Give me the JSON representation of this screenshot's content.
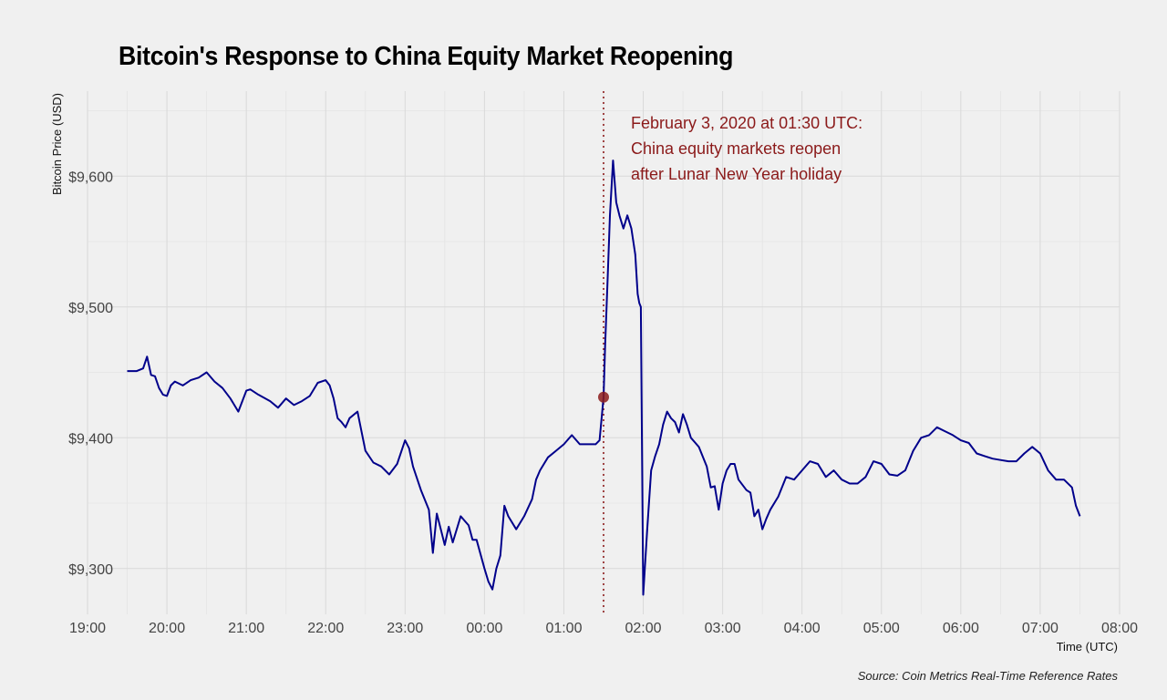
{
  "chart_data": {
    "type": "line",
    "title": "Bitcoin's Response to China Equity Market Reopening",
    "xlabel": "Time (UTC)",
    "ylabel": "Bitcoin Price (USD)",
    "source": "Source: Coin Metrics Real-Time Reference Rates",
    "xlim": [
      19.0,
      32.0
    ],
    "ylim": [
      9265,
      9665
    ],
    "x_ticks": [
      {
        "value": 19,
        "label": "19:00"
      },
      {
        "value": 20,
        "label": "20:00"
      },
      {
        "value": 21,
        "label": "21:00"
      },
      {
        "value": 22,
        "label": "22:00"
      },
      {
        "value": 23,
        "label": "23:00"
      },
      {
        "value": 24,
        "label": "00:00"
      },
      {
        "value": 25,
        "label": "01:00"
      },
      {
        "value": 26,
        "label": "02:00"
      },
      {
        "value": 27,
        "label": "03:00"
      },
      {
        "value": 28,
        "label": "04:00"
      },
      {
        "value": 29,
        "label": "05:00"
      },
      {
        "value": 30,
        "label": "06:00"
      },
      {
        "value": 31,
        "label": "07:00"
      },
      {
        "value": 32,
        "label": "08:00"
      }
    ],
    "y_ticks": [
      {
        "value": 9300,
        "label": "$9,300"
      },
      {
        "value": 9400,
        "label": "$9,400"
      },
      {
        "value": 9500,
        "label": "$9,500"
      },
      {
        "value": 9600,
        "label": "$9,600"
      }
    ],
    "grid": true,
    "series": [
      {
        "color": "#00008b",
        "x": [
          19.5,
          19.62,
          19.7,
          19.75,
          19.8,
          19.85,
          19.9,
          19.95,
          20.0,
          20.05,
          20.1,
          20.2,
          20.3,
          20.4,
          20.5,
          20.6,
          20.7,
          20.8,
          20.9,
          21.0,
          21.05,
          21.15,
          21.3,
          21.4,
          21.5,
          21.6,
          21.7,
          21.8,
          21.9,
          22.0,
          22.05,
          22.1,
          22.15,
          22.2,
          22.25,
          22.3,
          22.4,
          22.5,
          22.6,
          22.7,
          22.8,
          22.9,
          23.0,
          23.05,
          23.1,
          23.2,
          23.3,
          23.35,
          23.4,
          23.45,
          23.5,
          23.55,
          23.6,
          23.7,
          23.8,
          23.85,
          23.9,
          24.0,
          24.05,
          24.1,
          24.15,
          24.2,
          24.25,
          24.3,
          24.4,
          24.5,
          24.6,
          24.65,
          24.7,
          24.8,
          24.9,
          25.0,
          25.1,
          25.2,
          25.3,
          25.4,
          25.45,
          25.5,
          25.52,
          25.55,
          25.58,
          25.62,
          25.66,
          25.7,
          25.75,
          25.8,
          25.85,
          25.9,
          25.93,
          25.95,
          25.97,
          26.0,
          26.05,
          26.1,
          26.15,
          26.2,
          26.25,
          26.3,
          26.35,
          26.4,
          26.45,
          26.5,
          26.55,
          26.6,
          26.7,
          26.8,
          26.85,
          26.9,
          26.95,
          27.0,
          27.05,
          27.1,
          27.15,
          27.2,
          27.3,
          27.35,
          27.4,
          27.45,
          27.5,
          27.55,
          27.6,
          27.7,
          27.8,
          27.9,
          28.0,
          28.1,
          28.2,
          28.3,
          28.4,
          28.5,
          28.6,
          28.7,
          28.8,
          28.9,
          29.0,
          29.1,
          29.2,
          29.3,
          29.4,
          29.5,
          29.6,
          29.7,
          29.8,
          29.9,
          30.0,
          30.1,
          30.2,
          30.3,
          30.4,
          30.5,
          30.6,
          30.7,
          30.8,
          30.9,
          31.0,
          31.1,
          31.2,
          31.3,
          31.4,
          31.45,
          31.5
        ],
        "y": [
          9451,
          9451,
          9453,
          9462,
          9448,
          9447,
          9438,
          9433,
          9432,
          9440,
          9443,
          9440,
          9444,
          9446,
          9450,
          9443,
          9438,
          9430,
          9420,
          9436,
          9437,
          9433,
          9428,
          9423,
          9430,
          9425,
          9428,
          9432,
          9442,
          9444,
          9440,
          9430,
          9415,
          9412,
          9408,
          9415,
          9420,
          9390,
          9381,
          9378,
          9372,
          9380,
          9398,
          9392,
          9378,
          9360,
          9345,
          9312,
          9342,
          9330,
          9318,
          9332,
          9320,
          9340,
          9333,
          9322,
          9322,
          9300,
          9290,
          9284,
          9300,
          9310,
          9348,
          9340,
          9330,
          9340,
          9353,
          9368,
          9375,
          9385,
          9390,
          9395,
          9402,
          9395,
          9395,
          9395,
          9398,
          9431,
          9470,
          9520,
          9570,
          9612,
          9580,
          9570,
          9560,
          9570,
          9560,
          9540,
          9510,
          9503,
          9500,
          9280,
          9330,
          9375,
          9386,
          9395,
          9410,
          9420,
          9415,
          9412,
          9404,
          9418,
          9410,
          9400,
          9393,
          9378,
          9362,
          9363,
          9345,
          9365,
          9375,
          9380,
          9380,
          9368,
          9360,
          9358,
          9340,
          9345,
          9330,
          9338,
          9345,
          9355,
          9370,
          9368,
          9375,
          9382,
          9380,
          9370,
          9375,
          9368,
          9365,
          9365,
          9370,
          9382,
          9380,
          9372,
          9371,
          9375,
          9390,
          9400,
          9402,
          9408,
          9405,
          9402,
          9398,
          9396,
          9388,
          9386,
          9384,
          9383,
          9382,
          9382,
          9388,
          9393,
          9388,
          9375,
          9368,
          9368,
          9362,
          9348,
          9340
        ]
      }
    ],
    "event_marker": {
      "x": 25.5,
      "y": 9431,
      "color": "#8b1a1a",
      "label_lines": [
        "February 3, 2020 at 01:30 UTC:",
        "China equity markets reopen",
        "after Lunar New Year holiday"
      ]
    }
  }
}
